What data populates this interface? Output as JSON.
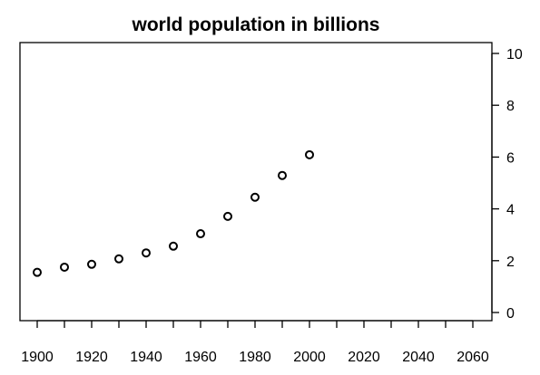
{
  "chart_data": {
    "type": "scatter",
    "title": "world population in billions",
    "xlabel": "",
    "ylabel": "",
    "x": [
      1900,
      1910,
      1920,
      1930,
      1940,
      1950,
      1960,
      1970,
      1980,
      1990,
      2000
    ],
    "y": [
      1.55,
      1.75,
      1.86,
      2.07,
      2.3,
      2.56,
      3.04,
      3.71,
      4.45,
      5.29,
      6.09
    ],
    "xlim": [
      1900,
      2060
    ],
    "ylim": [
      0,
      10
    ],
    "x_ticks": [
      1900,
      1920,
      1940,
      1960,
      1980,
      2000,
      2020,
      2040,
      2060
    ],
    "x_ticks_minor": [
      1910,
      1930,
      1950,
      1970,
      1990,
      2010,
      2030,
      2050
    ],
    "y_ticks": [
      0,
      2,
      4,
      6,
      8,
      10
    ],
    "y_axis_side": "right",
    "grid": false,
    "legend": "none",
    "marker": "open-circle",
    "colors": {
      "marker": "#000000",
      "axes": "#000000",
      "background": "#ffffff"
    }
  }
}
